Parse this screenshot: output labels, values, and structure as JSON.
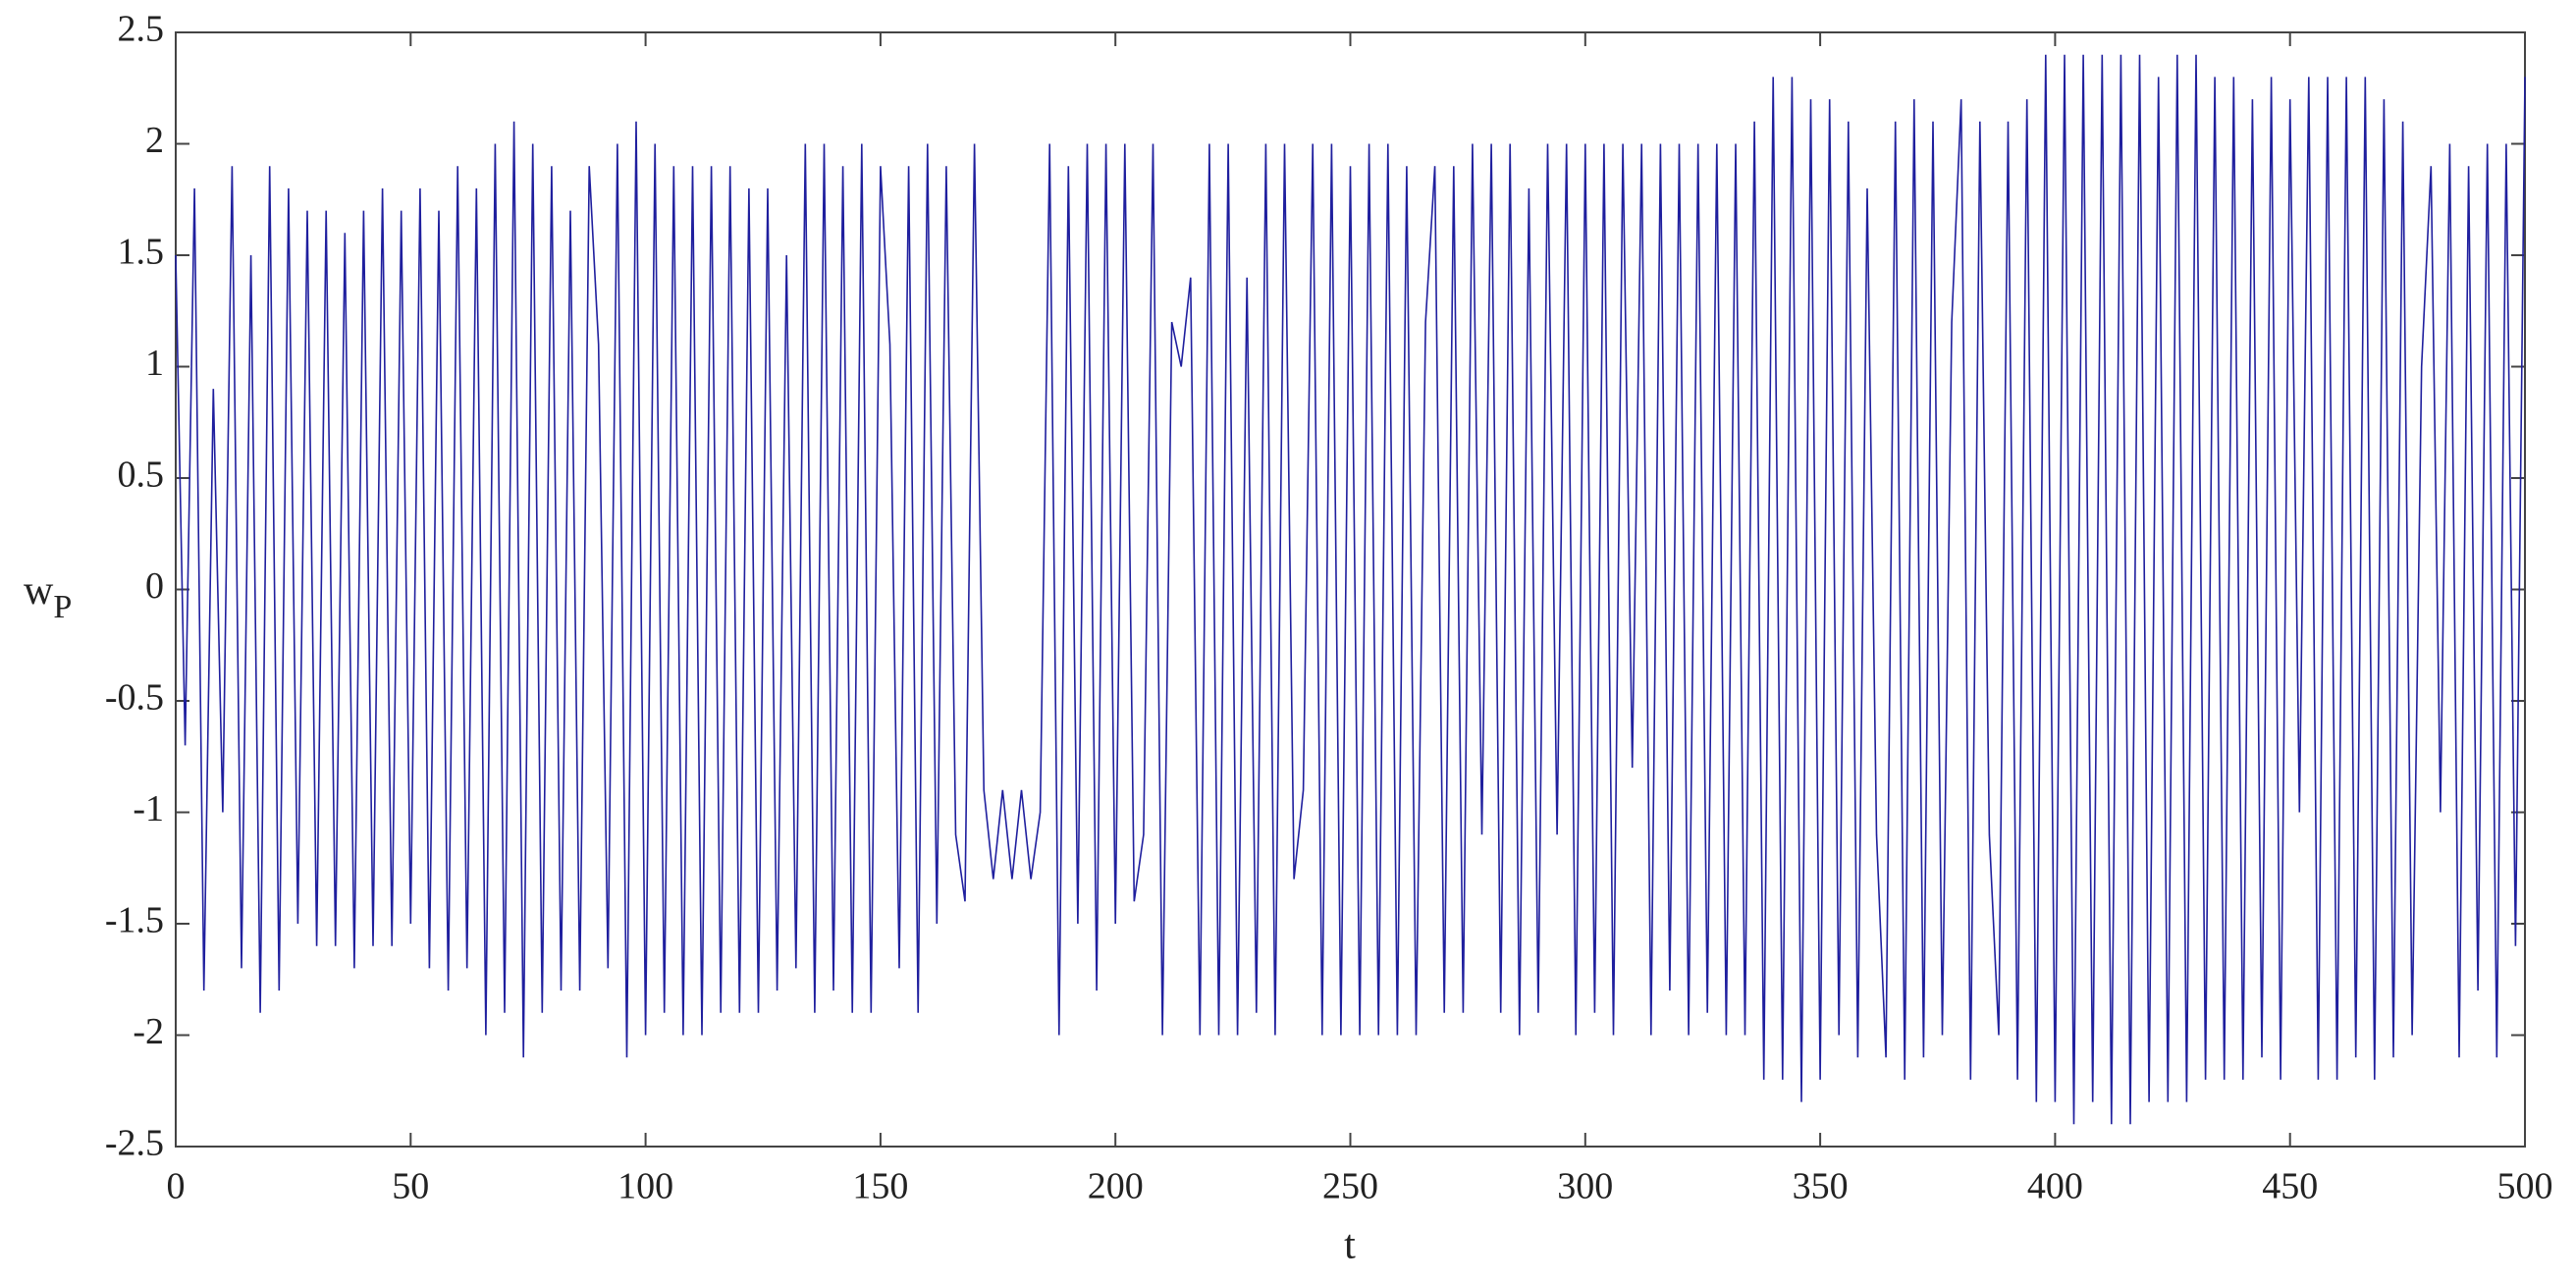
{
  "chart_data": {
    "type": "line",
    "xlabel": "t",
    "ylabel": "w",
    "ylabel_sub": "P",
    "xlim": [
      0,
      500
    ],
    "xticks": [
      0,
      50,
      100,
      150,
      200,
      250,
      300,
      350,
      400,
      450,
      500
    ],
    "ylim": [
      -2.5,
      2.5
    ],
    "yticks": [
      -2.5,
      -2,
      -1.5,
      -1,
      -0.5,
      0,
      0.5,
      1,
      1.5,
      2,
      2.5
    ],
    "grid": false,
    "series": [
      {
        "color": "#1f1f9e",
        "x": [
          0,
          2,
          4,
          6,
          8,
          10,
          12,
          14,
          16,
          18,
          20,
          22,
          24,
          26,
          28,
          30,
          32,
          34,
          36,
          38,
          40,
          42,
          44,
          46,
          48,
          50,
          52,
          54,
          56,
          58,
          60,
          62,
          64,
          66,
          68,
          70,
          72,
          74,
          76,
          78,
          80,
          82,
          84,
          86,
          88,
          90,
          92,
          94,
          96,
          98,
          100,
          102,
          104,
          106,
          108,
          110,
          112,
          114,
          116,
          118,
          120,
          122,
          124,
          126,
          128,
          130,
          132,
          134,
          136,
          138,
          140,
          142,
          144,
          146,
          148,
          150,
          152,
          154,
          156,
          158,
          160,
          162,
          164,
          166,
          168,
          170,
          172,
          174,
          176,
          178,
          180,
          182,
          184,
          186,
          188,
          190,
          192,
          194,
          196,
          198,
          200,
          202,
          204,
          206,
          208,
          210,
          212,
          214,
          216,
          218,
          220,
          222,
          224,
          226,
          228,
          230,
          232,
          234,
          236,
          238,
          240,
          242,
          244,
          246,
          248,
          250,
          252,
          254,
          256,
          258,
          260,
          262,
          264,
          266,
          268,
          270,
          272,
          274,
          276,
          278,
          280,
          282,
          284,
          286,
          288,
          290,
          292,
          294,
          296,
          298,
          300,
          302,
          304,
          306,
          308,
          310,
          312,
          314,
          316,
          318,
          320,
          322,
          324,
          326,
          328,
          330,
          332,
          334,
          336,
          338,
          340,
          342,
          344,
          346,
          348,
          350,
          352,
          354,
          356,
          358,
          360,
          362,
          364,
          366,
          368,
          370,
          372,
          374,
          376,
          378,
          380,
          382,
          384,
          386,
          388,
          390,
          392,
          394,
          396,
          398,
          400,
          402,
          404,
          406,
          408,
          410,
          412,
          414,
          416,
          418,
          420,
          422,
          424,
          426,
          428,
          430,
          432,
          434,
          436,
          438,
          440,
          442,
          444,
          446,
          448,
          450,
          452,
          454,
          456,
          458,
          460,
          462,
          464,
          466,
          468,
          470,
          472,
          474,
          476,
          478,
          480,
          482,
          484,
          486,
          488,
          490,
          492,
          494,
          496,
          498,
          500
        ],
        "values": [
          1.5,
          -0.7,
          1.8,
          -1.8,
          0.9,
          -1.0,
          1.9,
          -1.7,
          1.5,
          -1.9,
          1.9,
          -1.8,
          1.8,
          -1.5,
          1.7,
          -1.6,
          1.7,
          -1.6,
          1.6,
          -1.7,
          1.7,
          -1.6,
          1.8,
          -1.6,
          1.7,
          -1.5,
          1.8,
          -1.7,
          1.7,
          -1.8,
          1.9,
          -1.7,
          1.8,
          -2.0,
          2.0,
          -1.9,
          2.1,
          -2.1,
          2.0,
          -1.9,
          1.9,
          -1.8,
          1.7,
          -1.8,
          1.9,
          1.1,
          -1.7,
          2.0,
          -2.1,
          2.1,
          -2.0,
          2.0,
          -1.9,
          1.9,
          -2.0,
          1.9,
          -2.0,
          1.9,
          -1.9,
          1.9,
          -1.9,
          1.8,
          -1.9,
          1.8,
          -1.8,
          1.5,
          -1.7,
          2.0,
          -1.9,
          2.0,
          -1.8,
          1.9,
          -1.9,
          2.0,
          -1.9,
          1.9,
          1.1,
          -1.7,
          1.9,
          -1.9,
          2.0,
          -1.5,
          1.9,
          -1.1,
          -1.4,
          2.0,
          -0.9,
          -1.3,
          -0.9,
          -1.3,
          -0.9,
          -1.3,
          -1.0,
          2.0,
          -2.0,
          1.9,
          -1.5,
          2.0,
          -1.8,
          2.0,
          -1.5,
          2.0,
          -1.4,
          -1.1,
          2.0,
          -2.0,
          1.2,
          1.0,
          1.4,
          -2.0,
          2.0,
          -2.0,
          2.0,
          -2.0,
          1.4,
          -1.9,
          2.0,
          -2.0,
          2.0,
          -1.3,
          -0.9,
          2.0,
          -2.0,
          2.0,
          -2.0,
          1.9,
          -2.0,
          2.0,
          -2.0,
          2.0,
          -2.0,
          1.9,
          -2.0,
          1.2,
          1.9,
          -1.9,
          1.9,
          -1.9,
          2.0,
          -1.1,
          2.0,
          -1.9,
          2.0,
          -2.0,
          1.8,
          -1.9,
          2.0,
          -1.1,
          2.0,
          -2.0,
          2.0,
          -1.9,
          2.0,
          -2.0,
          2.0,
          -0.8,
          2.0,
          -2.0,
          2.0,
          -1.8,
          2.0,
          -2.0,
          2.0,
          -1.9,
          2.0,
          -2.0,
          2.0,
          -2.0,
          2.1,
          -2.2,
          2.3,
          -2.2,
          2.3,
          -2.3,
          2.2,
          -2.2,
          2.2,
          -2.0,
          2.1,
          -2.1,
          1.8,
          -1.1,
          -2.1,
          2.1,
          -2.2,
          2.2,
          -2.1,
          2.1,
          -2.0,
          1.2,
          2.2,
          -2.2,
          2.1,
          -1.1,
          -2.0,
          2.1,
          -2.2,
          2.2,
          -2.3,
          2.4,
          -2.3,
          2.4,
          -2.4,
          2.4,
          -2.3,
          2.4,
          -2.4,
          2.4,
          -2.4,
          2.4,
          -2.3,
          2.3,
          -2.3,
          2.4,
          -2.3,
          2.4,
          -2.2,
          2.3,
          -2.2,
          2.3,
          -2.2,
          2.2,
          -2.1,
          2.3,
          -2.2,
          2.2,
          -1.0,
          2.3,
          -2.2,
          2.3,
          -2.2,
          2.3,
          -2.1,
          2.3,
          -2.2,
          2.2,
          -2.1,
          2.1,
          -2.0,
          1.0,
          1.9,
          -1.0,
          2.0,
          -2.1,
          1.9,
          -1.8,
          2.0,
          -2.1,
          2.0,
          -1.6,
          2.3
        ]
      }
    ]
  }
}
